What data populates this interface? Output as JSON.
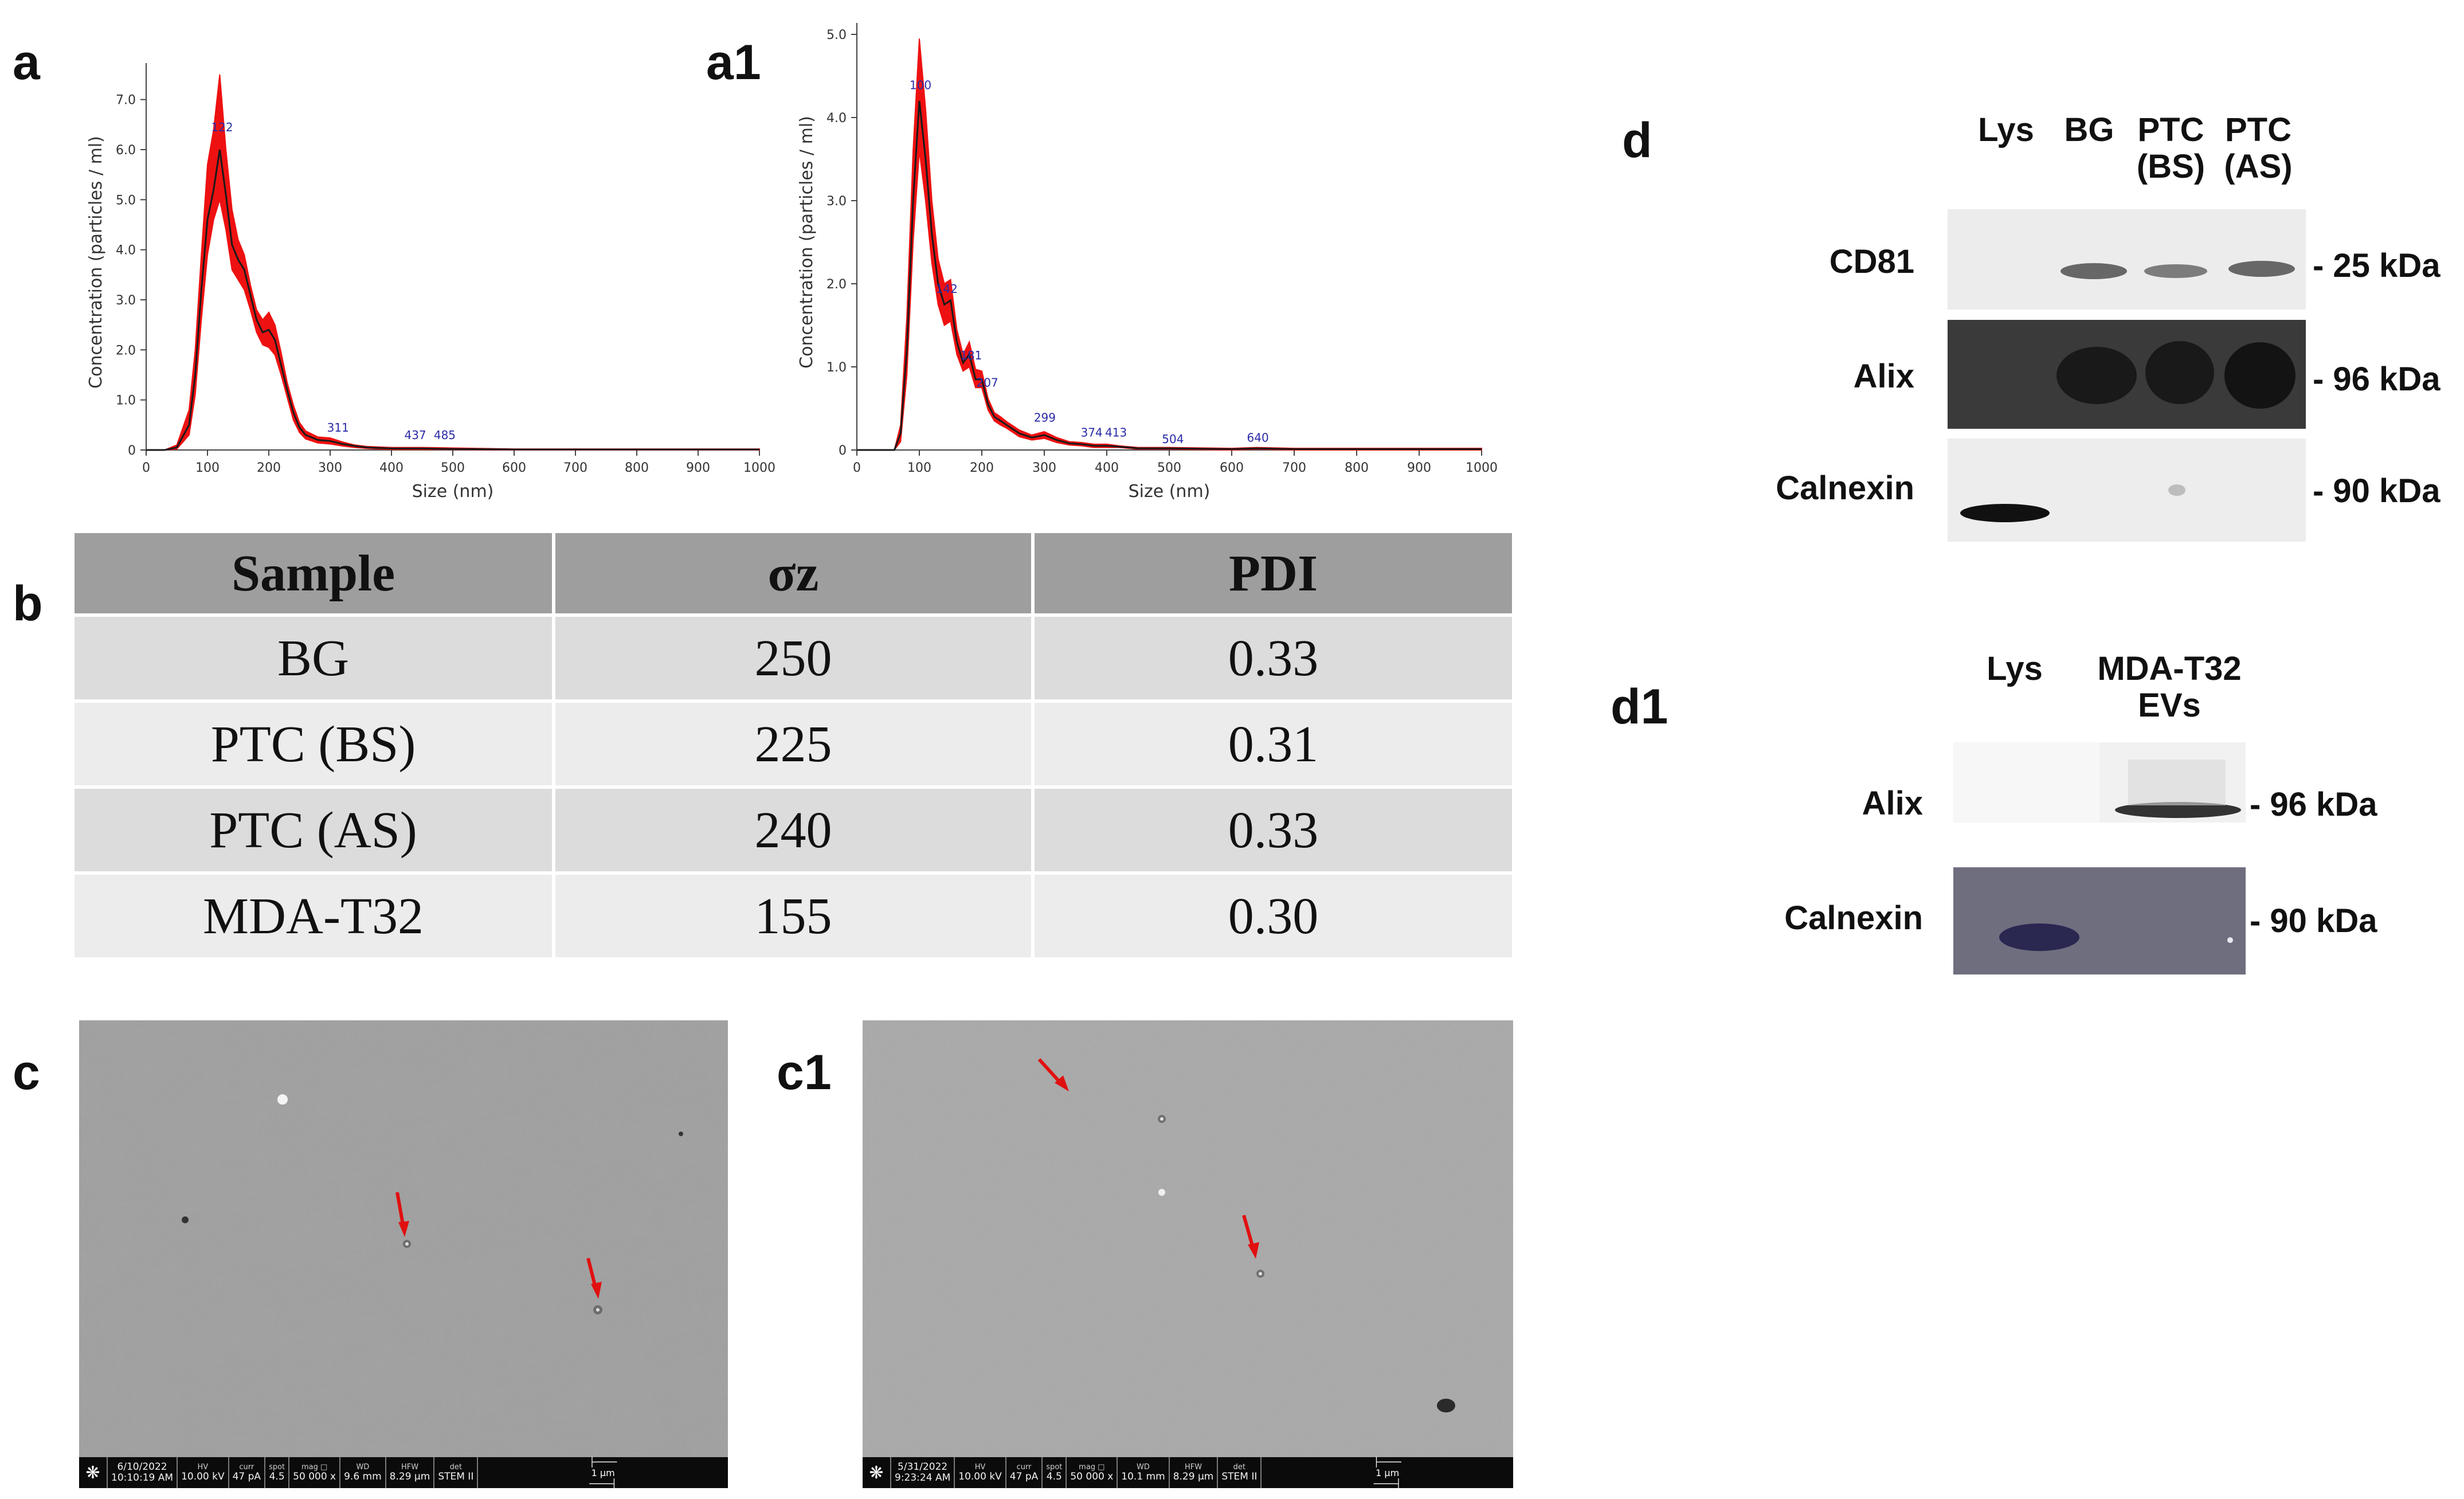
{
  "panel_labels": {
    "a": "a",
    "a1": "a1",
    "b": "b",
    "c": "c",
    "c1": "c1",
    "d": "d",
    "d1": "d1"
  },
  "chart_data": [
    {
      "type": "line",
      "name": "a",
      "title": "",
      "xlabel": "Size (nm)",
      "ylabel": "Concentration (particles / ml)",
      "xlim": [
        0,
        1000
      ],
      "ylim": [
        0,
        7.5
      ],
      "xticks": [
        "0",
        "100",
        "200",
        "300",
        "400",
        "500",
        "600",
        "700",
        "800",
        "900",
        "1000"
      ],
      "yticks": [
        "0",
        "1.0",
        "2.0",
        "3.0",
        "4.0",
        "5.0",
        "6.0",
        "7.0"
      ],
      "series": [
        {
          "name": "mean",
          "x": [
            0,
            30,
            50,
            70,
            80,
            90,
            100,
            110,
            120,
            130,
            140,
            150,
            160,
            170,
            180,
            190,
            200,
            210,
            220,
            230,
            240,
            250,
            260,
            280,
            300,
            320,
            340,
            360,
            400,
            450,
            500,
            600,
            700,
            800,
            900,
            1000
          ],
          "y": [
            0,
            0,
            0.05,
            0.5,
            1.5,
            3.2,
            4.6,
            5.2,
            6.0,
            5.1,
            4.1,
            3.8,
            3.6,
            3.1,
            2.6,
            2.35,
            2.4,
            2.2,
            1.7,
            1.2,
            0.75,
            0.45,
            0.3,
            0.2,
            0.18,
            0.12,
            0.08,
            0.05,
            0.03,
            0.03,
            0.02,
            0.01,
            0.01,
            0.01,
            0.01,
            0.01
          ]
        },
        {
          "name": "error_upper",
          "x": [
            0,
            30,
            50,
            70,
            80,
            90,
            100,
            110,
            120,
            130,
            140,
            150,
            160,
            170,
            180,
            190,
            200,
            210,
            220,
            230,
            240,
            250,
            260,
            280,
            300,
            320,
            340,
            360,
            400,
            450,
            500,
            600,
            700,
            800,
            900,
            1000
          ],
          "y": [
            0,
            0,
            0.1,
            0.8,
            2.0,
            3.9,
            5.7,
            6.4,
            7.5,
            6.0,
            4.8,
            4.2,
            3.9,
            3.3,
            2.8,
            2.6,
            2.75,
            2.5,
            1.95,
            1.35,
            0.9,
            0.55,
            0.38,
            0.26,
            0.24,
            0.16,
            0.1,
            0.07,
            0.05,
            0.05,
            0.04,
            0.02,
            0.02,
            0.02,
            0.02,
            0.02
          ]
        },
        {
          "name": "error_lower",
          "x": [
            0,
            30,
            50,
            70,
            80,
            90,
            100,
            110,
            120,
            130,
            140,
            150,
            160,
            170,
            180,
            190,
            200,
            210,
            220,
            230,
            240,
            250,
            260,
            280,
            300,
            320,
            340,
            360,
            400,
            450,
            500,
            600,
            700,
            800,
            900,
            1000
          ],
          "y": [
            0,
            0,
            0.02,
            0.3,
            1.1,
            2.6,
            3.9,
            4.6,
            5.0,
            4.4,
            3.6,
            3.4,
            3.2,
            2.8,
            2.35,
            2.1,
            2.05,
            1.9,
            1.5,
            1.05,
            0.6,
            0.35,
            0.22,
            0.14,
            0.12,
            0.08,
            0.05,
            0.03,
            0.01,
            0.01,
            0.01,
            0,
            0,
            0,
            0,
            0
          ]
        }
      ],
      "peak_labels": [
        {
          "x": 122,
          "y": 6.3,
          "text": "122"
        },
        {
          "x": 311,
          "y": 0.3,
          "text": "311"
        },
        {
          "x": 437,
          "y": 0.15,
          "text": "437"
        },
        {
          "x": 485,
          "y": 0.15,
          "text": "485"
        }
      ]
    },
    {
      "type": "line",
      "name": "a1",
      "title": "",
      "xlabel": "Size (nm)",
      "ylabel": "Concentration (particles / ml)",
      "xlim": [
        0,
        1000
      ],
      "ylim": [
        0,
        5.0
      ],
      "xticks": [
        "0",
        "100",
        "200",
        "300",
        "400",
        "500",
        "600",
        "700",
        "800",
        "900",
        "1000"
      ],
      "yticks": [
        "0",
        "1.0",
        "2.0",
        "3.0",
        "4.0",
        "5.0"
      ],
      "series": [
        {
          "name": "mean",
          "x": [
            0,
            60,
            70,
            80,
            90,
            100,
            110,
            120,
            130,
            140,
            150,
            160,
            170,
            180,
            190,
            200,
            210,
            220,
            230,
            240,
            260,
            280,
            300,
            320,
            340,
            360,
            380,
            400,
            420,
            450,
            500,
            600,
            640,
            700,
            800,
            900,
            1000
          ],
          "y": [
            0,
            0,
            0.2,
            1.2,
            3.0,
            4.2,
            3.5,
            2.6,
            2.0,
            1.75,
            1.8,
            1.3,
            1.05,
            1.15,
            0.85,
            0.85,
            0.55,
            0.4,
            0.35,
            0.3,
            0.2,
            0.15,
            0.18,
            0.12,
            0.08,
            0.07,
            0.05,
            0.05,
            0.04,
            0.02,
            0.02,
            0.01,
            0.02,
            0.01,
            0.01,
            0.01,
            0.01
          ]
        },
        {
          "name": "error_upper",
          "x": [
            0,
            60,
            70,
            80,
            90,
            100,
            110,
            120,
            130,
            140,
            150,
            160,
            170,
            180,
            190,
            200,
            210,
            220,
            230,
            240,
            260,
            280,
            300,
            320,
            340,
            360,
            380,
            400,
            420,
            450,
            500,
            600,
            640,
            700,
            800,
            900,
            1000
          ],
          "y": [
            0,
            0,
            0.3,
            1.6,
            3.6,
            4.95,
            4.1,
            3.0,
            2.3,
            2.0,
            2.05,
            1.45,
            1.15,
            1.3,
            0.97,
            0.95,
            0.62,
            0.45,
            0.4,
            0.34,
            0.24,
            0.18,
            0.22,
            0.15,
            0.1,
            0.09,
            0.07,
            0.07,
            0.05,
            0.03,
            0.03,
            0.02,
            0.03,
            0.02,
            0.02,
            0.02,
            0.02
          ]
        },
        {
          "name": "error_lower",
          "x": [
            0,
            60,
            70,
            80,
            90,
            100,
            110,
            120,
            130,
            140,
            150,
            160,
            170,
            180,
            190,
            200,
            210,
            220,
            230,
            240,
            260,
            280,
            300,
            320,
            340,
            360,
            380,
            400,
            420,
            450,
            500,
            600,
            640,
            700,
            800,
            900,
            1000
          ],
          "y": [
            0,
            0,
            0.1,
            0.9,
            2.5,
            3.6,
            3.0,
            2.25,
            1.75,
            1.5,
            1.55,
            1.15,
            0.95,
            1.0,
            0.75,
            0.75,
            0.48,
            0.35,
            0.3,
            0.26,
            0.16,
            0.12,
            0.14,
            0.09,
            0.06,
            0.05,
            0.03,
            0.03,
            0.03,
            0.01,
            0.01,
            0,
            0.01,
            0,
            0,
            0,
            0
          ]
        }
      ],
      "peak_labels": [
        {
          "x": 100,
          "y": 4.3,
          "text": "100"
        },
        {
          "x": 142,
          "y": 1.85,
          "text": "142"
        },
        {
          "x": 181,
          "y": 1.05,
          "text": "181"
        },
        {
          "x": 207,
          "y": 0.72,
          "text": "207"
        },
        {
          "x": 299,
          "y": 0.3,
          "text": "299"
        },
        {
          "x": 374,
          "y": 0.12,
          "text": "374"
        },
        {
          "x": 413,
          "y": 0.12,
          "text": "413"
        },
        {
          "x": 504,
          "y": 0.04,
          "text": "504"
        },
        {
          "x": 640,
          "y": 0.06,
          "text": "640"
        }
      ]
    },
    {
      "type": "table",
      "name": "b",
      "headers": [
        "Sample",
        "σz",
        "PDI"
      ],
      "rows": [
        [
          "BG",
          "250",
          "0.33"
        ],
        [
          "PTC (BS)",
          "225",
          "0.31"
        ],
        [
          "PTC (AS)",
          "240",
          "0.33"
        ],
        [
          "MDA-T32",
          "155",
          "0.30"
        ]
      ]
    }
  ],
  "sem": {
    "c": {
      "date": "6/10/2022",
      "time": "10:10:19 AM",
      "hv_k": "HV",
      "hv": "10.00 kV",
      "curr_k": "curr",
      "curr": "47 pA",
      "spot_k": "spot",
      "spot": "4.5",
      "mag_k": "mag □",
      "mag": "50 000 x",
      "wd_k": "WD",
      "wd": "9.6 mm",
      "hfw_k": "HFW",
      "hfw": "8.29 μm",
      "det_k": "det",
      "det": "STEM II",
      "scale": "1 μm"
    },
    "c1": {
      "date": "5/31/2022",
      "time": "9:23:24 AM",
      "hv_k": "HV",
      "hv": "10.00 kV",
      "curr_k": "curr",
      "curr": "47 pA",
      "spot_k": "spot",
      "spot": "4.5",
      "mag_k": "mag □",
      "mag": "50 000 x",
      "wd_k": "WD",
      "wd": "10.1 mm",
      "hfw_k": "HFW",
      "hfw": "8.29 μm",
      "det_k": "det",
      "det": "STEM II",
      "scale": "1 μm"
    }
  },
  "blot_d": {
    "lanes": [
      "Lys",
      "BG",
      "PTC\n(BS)",
      "PTC\n(AS)"
    ],
    "rows": [
      {
        "name": "CD81",
        "marker": "- 25 kDa"
      },
      {
        "name": "Alix",
        "marker": "- 96 kDa"
      },
      {
        "name": "Calnexin",
        "marker": "- 90 kDa"
      }
    ]
  },
  "blot_d1": {
    "lanes": [
      "Lys",
      "MDA-T32\nEVs"
    ],
    "rows": [
      {
        "name": "Alix",
        "marker": "- 96 kDa"
      },
      {
        "name": "Calnexin",
        "marker": "- 90 kDa"
      }
    ]
  },
  "colors": {
    "error_band": "#ee1111",
    "mean_line": "#1a1a1a",
    "peak_label": "#2b2ba8",
    "arrow": "#e11010",
    "table_header": "#9e9e9e"
  },
  "icons": {
    "sem_logo": "fei-logo-icon",
    "arrow": "red-arrow-icon"
  }
}
